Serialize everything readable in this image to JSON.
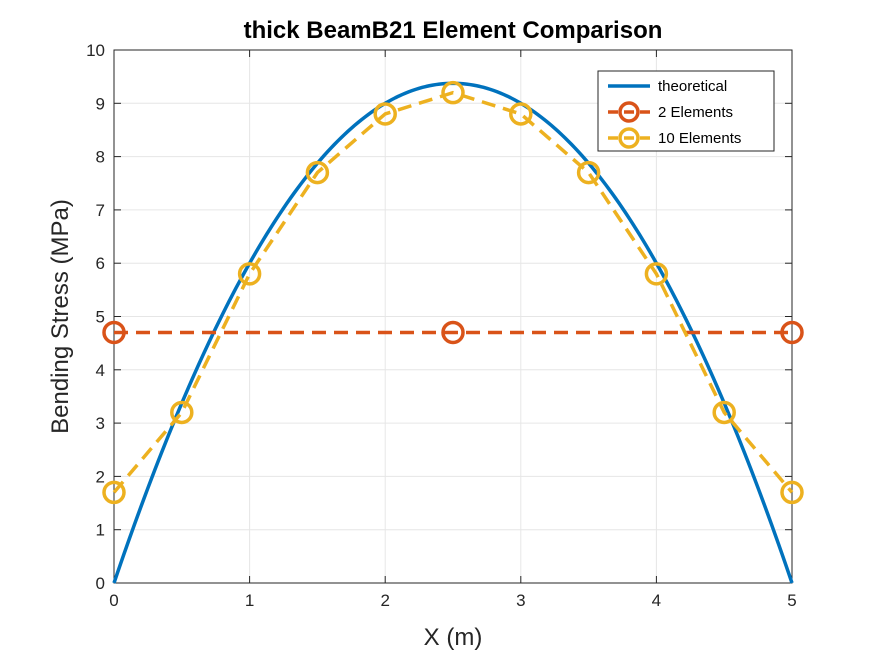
{
  "chart_data": {
    "type": "line",
    "title": "thick BeamB21 Element Comparison",
    "xlabel": "X (m)",
    "ylabel": "Bending Stress (MPa)",
    "xlim": [
      0,
      5
    ],
    "ylim": [
      0,
      10
    ],
    "xticks": [
      0,
      1,
      2,
      3,
      4,
      5
    ],
    "yticks": [
      0,
      1,
      2,
      3,
      4,
      5,
      6,
      7,
      8,
      9,
      10
    ],
    "grid": true,
    "legend_position": "top-right",
    "series": [
      {
        "name": "theoretical",
        "color": "#0072BD",
        "style": "solid",
        "marker": "none",
        "function": "parabola",
        "peak": 9.375,
        "x": [
          0,
          0.25,
          0.5,
          0.75,
          1,
          1.25,
          1.5,
          1.75,
          2,
          2.25,
          2.5,
          2.75,
          3,
          3.25,
          3.5,
          3.75,
          4,
          4.25,
          4.5,
          4.75,
          5
        ],
        "y": [
          0,
          1.78,
          3.38,
          4.78,
          6.0,
          7.03,
          7.88,
          8.53,
          9.0,
          9.28,
          9.375,
          9.28,
          9.0,
          8.53,
          7.88,
          7.03,
          6.0,
          4.78,
          3.38,
          1.78,
          0
        ]
      },
      {
        "name": "2 Elements",
        "color": "#D95319",
        "style": "dashed",
        "marker": "circle",
        "x": [
          0,
          2.5,
          5
        ],
        "y": [
          4.7,
          4.7,
          4.7
        ]
      },
      {
        "name": "10 Elements",
        "color": "#EDB120",
        "style": "dashed",
        "marker": "circle",
        "x": [
          0,
          0.5,
          1,
          1.5,
          2,
          2.5,
          3,
          3.5,
          4,
          4.5,
          5
        ],
        "y": [
          1.7,
          3.2,
          5.8,
          7.7,
          8.8,
          9.2,
          8.8,
          7.7,
          5.8,
          3.2,
          1.7
        ]
      }
    ]
  }
}
